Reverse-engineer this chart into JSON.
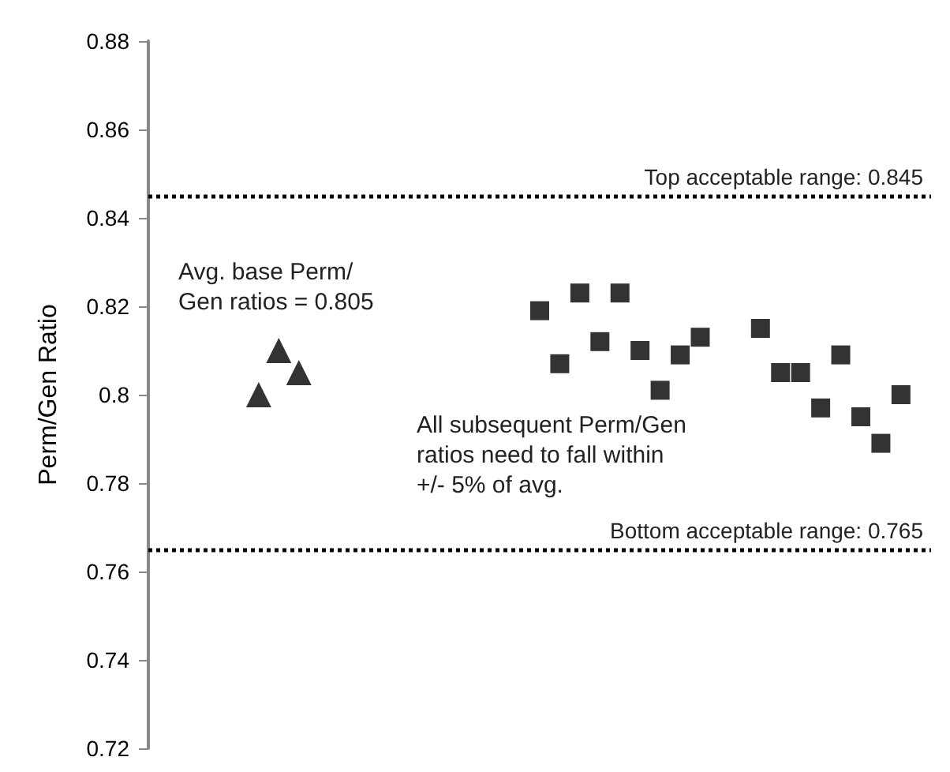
{
  "chart_data": {
    "type": "scatter",
    "ylabel": "Perm/Gen Ratio",
    "categories": [
      null,
      null,
      null,
      null,
      null,
      null,
      null,
      null,
      null,
      null,
      null,
      null,
      null,
      null,
      null,
      null,
      null,
      null,
      null,
      null,
      null,
      null,
      null,
      null,
      null,
      null,
      null,
      null,
      null,
      null,
      null,
      null,
      null,
      null,
      null,
      null,
      null,
      null,
      null
    ],
    "series": [
      {
        "color": "#000000",
        "marker": "triangle",
        "values": [
          null,
          null,
          null,
          null,
          null,
          0.8,
          0.81,
          0.805,
          null,
          null,
          null,
          null,
          null,
          null,
          null,
          null,
          null,
          null,
          null,
          null,
          null,
          null,
          null,
          null,
          null,
          null,
          null,
          null,
          null,
          null,
          null,
          null,
          null,
          null,
          null,
          null,
          null,
          null,
          null
        ]
      },
      {
        "color": "#000000",
        "marker": "square",
        "values": [
          null,
          null,
          null,
          null,
          null,
          null,
          null,
          null,
          null,
          null,
          null,
          null,
          null,
          null,
          null,
          null,
          null,
          null,
          null,
          0.819,
          0.807,
          0.823,
          0.812,
          0.823,
          0.81,
          0.801,
          0.809,
          0.813,
          null,
          null,
          0.815,
          0.805,
          0.805,
          0.797,
          0.809,
          0.795,
          0.789,
          0.8,
          null
        ]
      }
    ],
    "ylim": [
      0.72,
      0.88
    ],
    "yticks": [
      0.72,
      0.74,
      0.76,
      0.78,
      0.8,
      0.82,
      0.84,
      0.86,
      0.88
    ],
    "grid": false,
    "tick_labels": "y",
    "ref_lines": [
      {
        "axis": "y",
        "value": 0.845,
        "label": "Top acceptable range: 0.845",
        "color": "#000000",
        "line_style": "dotted"
      },
      {
        "axis": "y",
        "value": 0.765,
        "label": "Bottom acceptable range: 0.765",
        "color": "#000000",
        "line_style": "dotted"
      }
    ],
    "annotations": [
      "Avg. base Perm/\nGen ratios = 0.805",
      "All subsequent Perm/Gen\nratios need to fall within\n+/- 5% of avg."
    ]
  }
}
